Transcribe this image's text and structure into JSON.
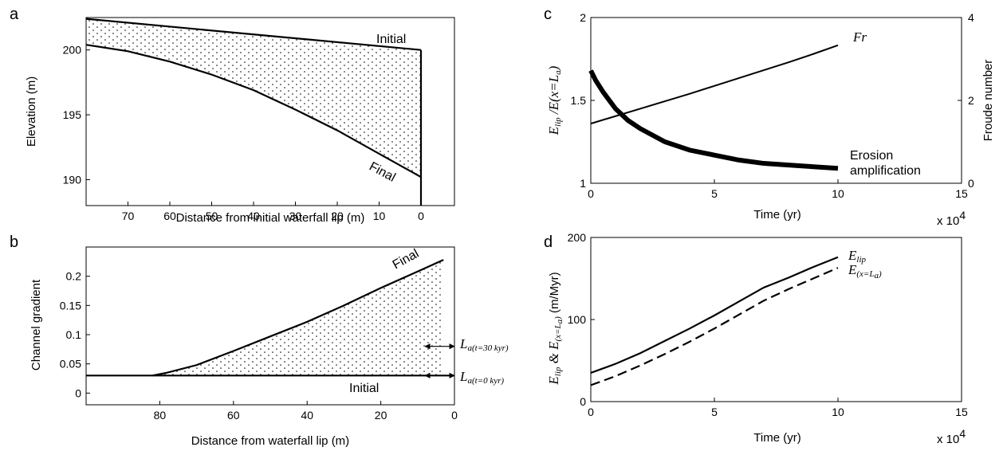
{
  "panels": [
    {
      "id": "a",
      "label": "a"
    },
    {
      "id": "b",
      "label": "b"
    },
    {
      "id": "c",
      "label": "c"
    },
    {
      "id": "d",
      "label": "d"
    }
  ],
  "chart_data": [
    {
      "id": "a",
      "type": "line",
      "xlabel": "Distance from initial waterfall lip (m)",
      "ylabel": "Elevation (m)",
      "xlim": [
        80,
        -8
      ],
      "ylim": [
        188,
        202.5
      ],
      "xticks": [
        70,
        60,
        50,
        40,
        30,
        20,
        10,
        0
      ],
      "yticks": [
        190,
        195,
        200
      ],
      "series": [
        {
          "name": "Initial",
          "x": [
            80,
            0
          ],
          "y": [
            202.4,
            200.0
          ]
        },
        {
          "name": "Final",
          "x": [
            80,
            70,
            60,
            50,
            40,
            30,
            20,
            10,
            5,
            0
          ],
          "y": [
            200.4,
            199.9,
            199.1,
            198.1,
            196.9,
            195.4,
            193.8,
            192.0,
            191.1,
            190.2
          ]
        },
        {
          "name": "Lip",
          "x": [
            0,
            0
          ],
          "y": [
            188,
            200.0
          ]
        }
      ],
      "annotations": [
        "Initial",
        "Final"
      ]
    },
    {
      "id": "b",
      "type": "line",
      "xlabel": "Distance from waterfall lip (m)",
      "ylabel": "Channel gradient",
      "xlim": [
        100,
        0
      ],
      "ylim": [
        -0.02,
        0.25
      ],
      "xticks": [
        80,
        60,
        40,
        20,
        0
      ],
      "yticks": [
        0,
        0.05,
        0.1,
        0.15,
        0.2
      ],
      "series": [
        {
          "name": "Initial",
          "x": [
            100,
            0
          ],
          "y": [
            0.03,
            0.03
          ]
        },
        {
          "name": "Final",
          "x": [
            82,
            78,
            70,
            60,
            50,
            40,
            30,
            20,
            10,
            3
          ],
          "y": [
            0.03,
            0.035,
            0.048,
            0.072,
            0.097,
            0.122,
            0.15,
            0.18,
            0.208,
            0.228
          ]
        }
      ],
      "annotations": [
        "Final",
        "Initial",
        "L",
        "a(t=30 kyr)",
        "L",
        "a(t=0 kyr)"
      ],
      "arrows": [
        {
          "y": 0.08,
          "x_from": 8,
          "x_to": 0
        },
        {
          "y": 0.03,
          "x_from": 8,
          "x_to": 0
        }
      ]
    },
    {
      "id": "c",
      "type": "line",
      "xlabel": "Time (yr)",
      "ylabel_left_parts": [
        "E",
        "lip",
        " /E",
        "(x=L",
        "a",
        ")"
      ],
      "ylabel_right": "Froude number",
      "xlim": [
        0,
        15
      ],
      "ylim_left": [
        1,
        2
      ],
      "ylim_right": [
        0,
        4
      ],
      "xticks": [
        0,
        5,
        10,
        15
      ],
      "yticks_left": [
        1,
        1.5,
        2
      ],
      "yticks_right": [
        0,
        2,
        4
      ],
      "x_multiplier": "x 10",
      "x_multiplier_exp": "4",
      "series": [
        {
          "name": "Fr",
          "axis": "right",
          "x": [
            0,
            1,
            2,
            3,
            4,
            5,
            6,
            7,
            8,
            9,
            10
          ],
          "y": [
            1.44,
            1.62,
            1.8,
            1.98,
            2.16,
            2.35,
            2.54,
            2.73,
            2.92,
            3.12,
            3.33
          ]
        },
        {
          "name": "Erosion amplification",
          "axis": "left",
          "x": [
            0,
            0.2,
            0.5,
            1,
            1.5,
            2,
            3,
            4,
            5,
            6,
            7,
            8,
            9,
            10
          ],
          "y": [
            1.68,
            1.62,
            1.55,
            1.45,
            1.38,
            1.33,
            1.25,
            1.2,
            1.17,
            1.14,
            1.12,
            1.11,
            1.1,
            1.09
          ]
        }
      ],
      "annotations": [
        "Fr",
        "Erosion",
        "amplification"
      ]
    },
    {
      "id": "d",
      "type": "line",
      "xlabel": "Time (yr)",
      "ylabel_parts": [
        "E",
        "lip",
        " & E",
        "(x=L",
        "a",
        ")",
        "  (m/Myr)"
      ],
      "xlim": [
        0,
        15
      ],
      "ylim": [
        0,
        200
      ],
      "xticks": [
        0,
        5,
        10,
        15
      ],
      "yticks": [
        0,
        100,
        200
      ],
      "x_multiplier": "x 10",
      "x_multiplier_exp": "4",
      "series": [
        {
          "name": "E lip",
          "style": "solid",
          "x": [
            0,
            1,
            2,
            3,
            4,
            5,
            6,
            7,
            8,
            9,
            10
          ],
          "y": [
            35,
            46,
            59,
            74,
            89,
            105,
            122,
            139,
            151,
            164,
            176
          ]
        },
        {
          "name": "E(x=La)",
          "style": "dashed",
          "x": [
            0,
            1,
            2,
            3,
            4,
            5,
            6,
            7,
            8,
            9,
            10
          ],
          "y": [
            20,
            31,
            44,
            58,
            73,
            89,
            106,
            123,
            137,
            150,
            163
          ]
        }
      ],
      "annotations": [
        "E",
        "lip",
        "E",
        "(x=L",
        "a",
        ")"
      ]
    }
  ]
}
